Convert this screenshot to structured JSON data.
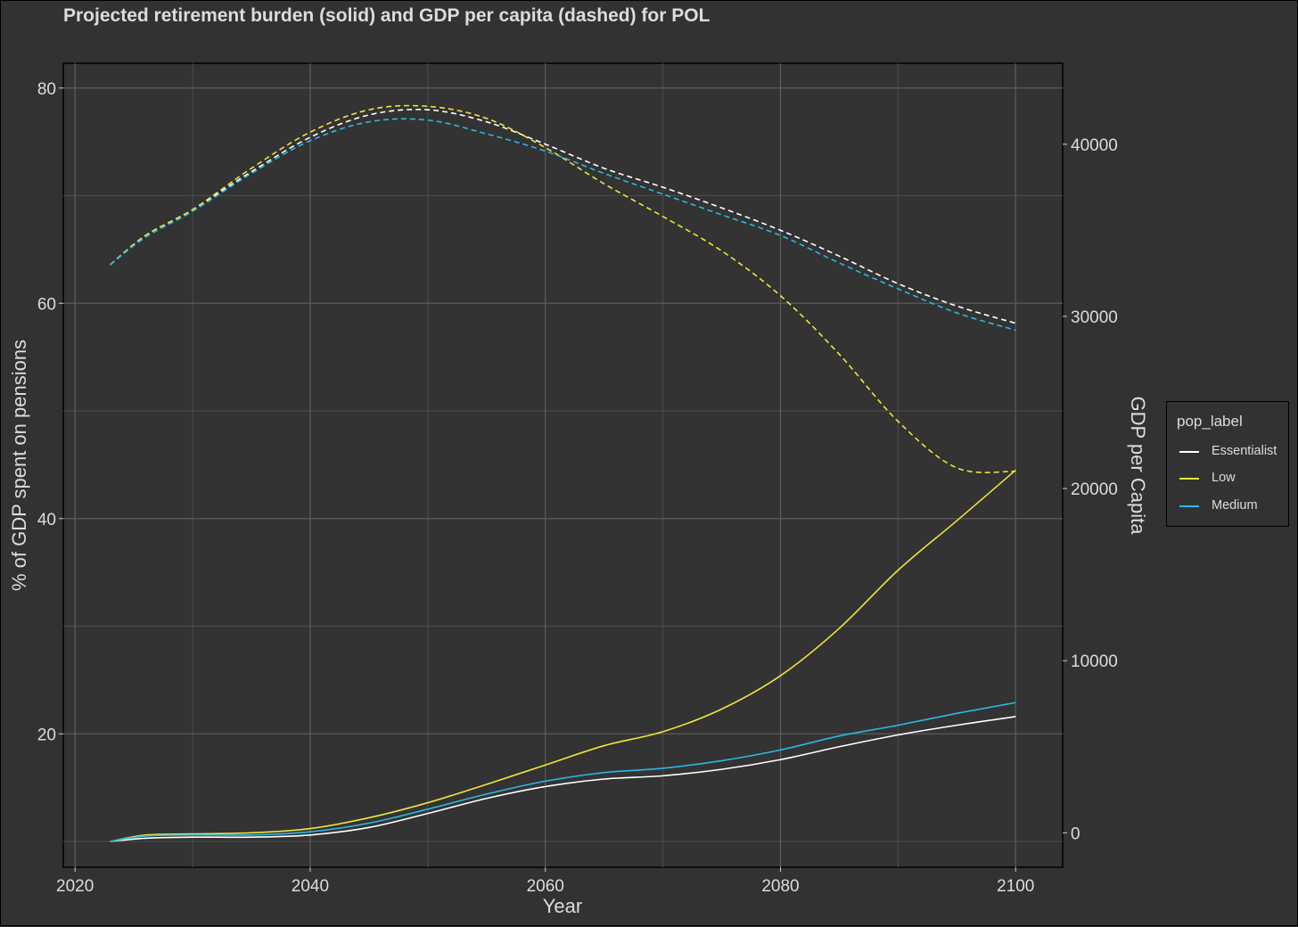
{
  "chart_data": {
    "type": "line",
    "title": "Projected retirement burden (solid) and GDP per capita (dashed) for POL",
    "xlabel": "Year",
    "ylabel": "% of GDP spent on pensions",
    "y2label": "GDP per Capita",
    "xlim": [
      2019,
      2104
    ],
    "ylim": [
      7.6,
      82.3
    ],
    "y2lim": [
      -2000,
      44700
    ],
    "xticks": [
      2020,
      2040,
      2060,
      2080,
      2100
    ],
    "yticks": [
      20,
      40,
      60,
      80
    ],
    "y2ticks": [
      0,
      10000,
      20000,
      30000,
      40000
    ],
    "grid": true,
    "legend": {
      "title": "pop_label",
      "position": "right"
    },
    "x": [
      2023,
      2026,
      2030,
      2035,
      2040,
      2045,
      2050,
      2055,
      2060,
      2065,
      2070,
      2075,
      2080,
      2085,
      2090,
      2095,
      2100
    ],
    "series": [
      {
        "name": "Essentialist",
        "color": "#ffffff",
        "kind": "pension",
        "axis": "left",
        "values": [
          10.0,
          10.3,
          10.4,
          10.4,
          10.6,
          11.3,
          12.6,
          14.0,
          15.1,
          15.8,
          16.1,
          16.7,
          17.6,
          18.8,
          19.9,
          20.8,
          21.6
        ]
      },
      {
        "name": "Low",
        "color": "#f2e33b",
        "kind": "pension",
        "axis": "left",
        "values": [
          10.0,
          10.6,
          10.7,
          10.8,
          11.2,
          12.2,
          13.6,
          15.3,
          17.1,
          18.9,
          20.2,
          22.3,
          25.4,
          29.8,
          35.2,
          39.8,
          44.5
        ]
      },
      {
        "name": "Medium",
        "color": "#28b9e8",
        "kind": "pension",
        "axis": "left",
        "values": [
          10.0,
          10.5,
          10.6,
          10.6,
          10.9,
          11.7,
          13.0,
          14.4,
          15.6,
          16.4,
          16.8,
          17.5,
          18.5,
          19.8,
          20.8,
          21.9,
          22.9
        ]
      },
      {
        "name": "Essentialist",
        "color": "#ffffff",
        "kind": "gdp",
        "axis": "right",
        "values": [
          33000,
          34700,
          36200,
          38400,
          40400,
          41700,
          42000,
          41300,
          40000,
          38600,
          37500,
          36300,
          35000,
          33500,
          31900,
          30600,
          29600
        ]
      },
      {
        "name": "Low",
        "color": "#f2e33b",
        "kind": "gdp",
        "axis": "right",
        "values": [
          33000,
          34700,
          36200,
          38600,
          40700,
          42000,
          42200,
          41500,
          39800,
          37700,
          35800,
          33800,
          31200,
          27800,
          23900,
          21200,
          21000
        ]
      },
      {
        "name": "Medium",
        "color": "#28b9e8",
        "kind": "gdp",
        "axis": "right",
        "values": [
          33000,
          34600,
          36100,
          38300,
          40200,
          41300,
          41400,
          40600,
          39600,
          38300,
          37100,
          35900,
          34700,
          33100,
          31600,
          30200,
          29200
        ]
      }
    ]
  }
}
